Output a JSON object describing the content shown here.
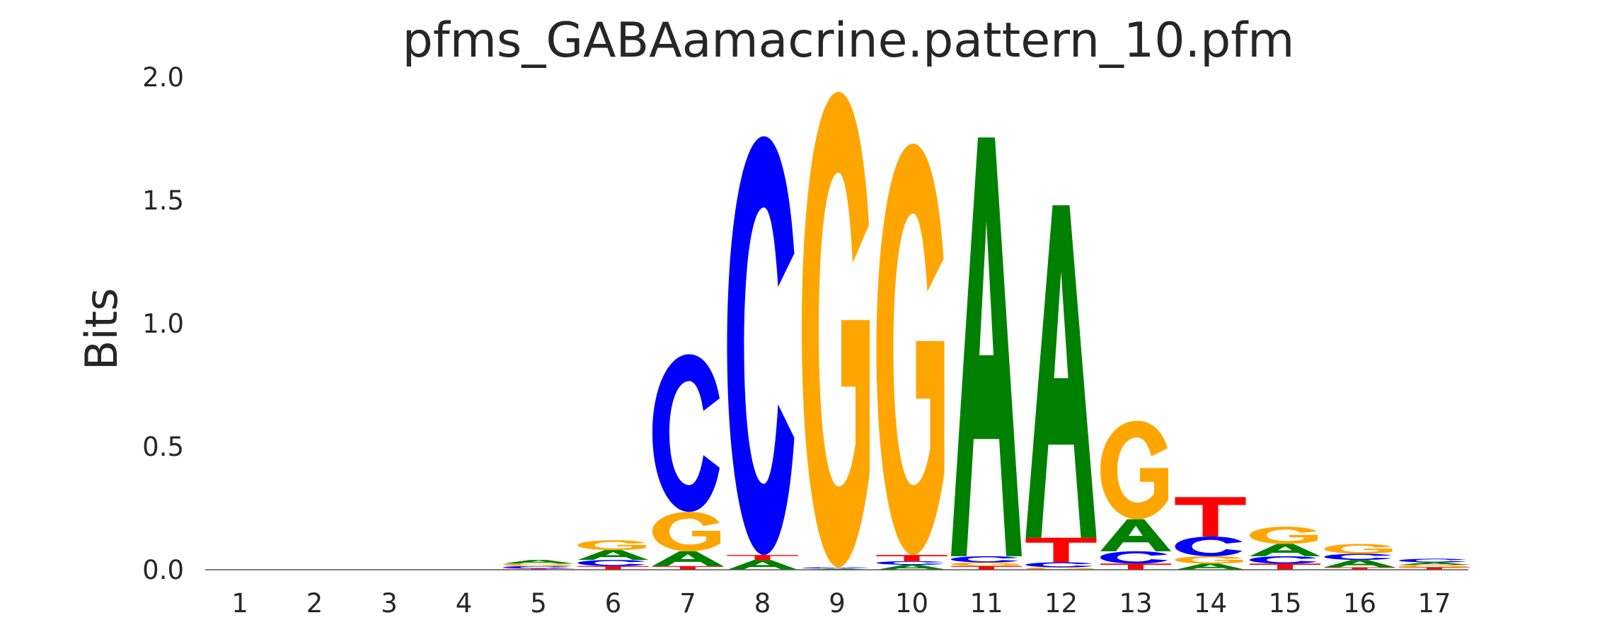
{
  "chart_data": {
    "type": "sequence-logo",
    "title": "pfms_GABAamacrine.pattern_10.pfm",
    "xlabel": "",
    "ylabel": "Bits",
    "ylim": [
      0,
      2.0
    ],
    "y_ticks": [
      "0.0",
      "0.5",
      "1.0",
      "1.5",
      "2.0"
    ],
    "positions": [
      "1",
      "2",
      "3",
      "4",
      "5",
      "6",
      "7",
      "8",
      "9",
      "10",
      "11",
      "12",
      "13",
      "14",
      "15",
      "16",
      "17"
    ],
    "grid": false,
    "colors": {
      "A": "#008000",
      "C": "#0000ff",
      "G": "#ffa500",
      "T": "#ff0000"
    },
    "stacks": [
      [],
      [],
      [],
      [],
      [
        {
          "base": "T",
          "value": 0.005
        },
        {
          "base": "C",
          "value": 0.01
        },
        {
          "base": "G",
          "value": 0.01
        },
        {
          "base": "A",
          "value": 0.015
        }
      ],
      [
        {
          "base": "T",
          "value": 0.015
        },
        {
          "base": "C",
          "value": 0.025
        },
        {
          "base": "A",
          "value": 0.04
        },
        {
          "base": "G",
          "value": 0.04
        }
      ],
      [
        {
          "base": "T",
          "value": 0.015
        },
        {
          "base": "A",
          "value": 0.06
        },
        {
          "base": "G",
          "value": 0.16
        },
        {
          "base": "C",
          "value": 0.64
        }
      ],
      [
        {
          "base": "A",
          "value": 0.04
        },
        {
          "base": "T",
          "value": 0.02
        },
        {
          "base": "C",
          "value": 1.7
        }
      ],
      [
        {
          "base": "A",
          "value": 0.005
        },
        {
          "base": "C",
          "value": 0.005
        },
        {
          "base": "G",
          "value": 1.93
        }
      ],
      [
        {
          "base": "A",
          "value": 0.02
        },
        {
          "base": "C",
          "value": 0.015
        },
        {
          "base": "T",
          "value": 0.025
        },
        {
          "base": "G",
          "value": 1.67
        }
      ],
      [
        {
          "base": "T",
          "value": 0.015
        },
        {
          "base": "G",
          "value": 0.015
        },
        {
          "base": "C",
          "value": 0.025
        },
        {
          "base": "A",
          "value": 1.7
        }
      ],
      [
        {
          "base": "G",
          "value": 0.01
        },
        {
          "base": "C",
          "value": 0.02
        },
        {
          "base": "T",
          "value": 0.1
        },
        {
          "base": "A",
          "value": 1.35
        }
      ],
      [
        {
          "base": "T",
          "value": 0.025
        },
        {
          "base": "C",
          "value": 0.05
        },
        {
          "base": "A",
          "value": 0.13
        },
        {
          "base": "G",
          "value": 0.4
        }
      ],
      [
        {
          "base": "A",
          "value": 0.025
        },
        {
          "base": "G",
          "value": 0.03
        },
        {
          "base": "C",
          "value": 0.08
        },
        {
          "base": "T",
          "value": 0.16
        }
      ],
      [
        {
          "base": "T",
          "value": 0.025
        },
        {
          "base": "C",
          "value": 0.03
        },
        {
          "base": "A",
          "value": 0.05
        },
        {
          "base": "G",
          "value": 0.07
        }
      ],
      [
        {
          "base": "T",
          "value": 0.01
        },
        {
          "base": "A",
          "value": 0.03
        },
        {
          "base": "C",
          "value": 0.025
        },
        {
          "base": "G",
          "value": 0.04
        }
      ],
      [
        {
          "base": "T",
          "value": 0.01
        },
        {
          "base": "G",
          "value": 0.01
        },
        {
          "base": "A",
          "value": 0.01
        },
        {
          "base": "C",
          "value": 0.015
        }
      ]
    ]
  }
}
